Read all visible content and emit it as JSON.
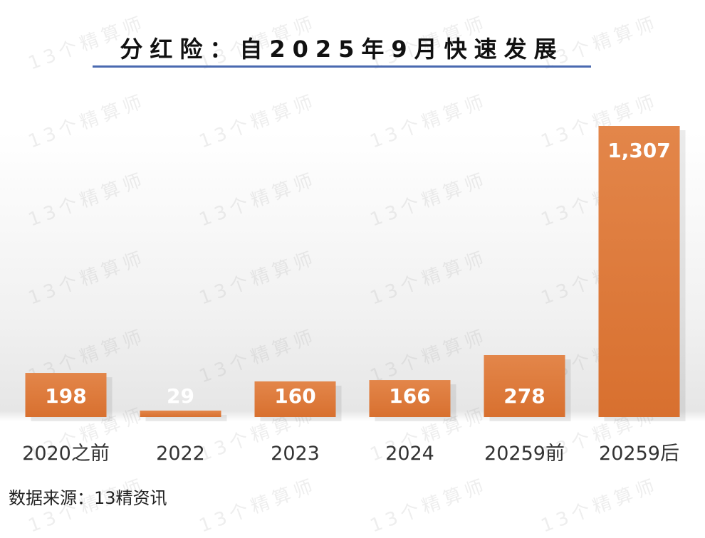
{
  "chart_data": {
    "type": "bar",
    "title": "分红险：自2025年9月快速发展",
    "categories": [
      "2020之前",
      "2022",
      "2023",
      "2024",
      "20259前",
      "20259后"
    ],
    "values": [
      198,
      29,
      160,
      166,
      278,
      1307
    ],
    "data_labels": [
      "198",
      "29",
      "160",
      "166",
      "278",
      "1,307"
    ],
    "bar_color": "#e07a3a",
    "label_color": "#ffffff",
    "grid": false,
    "legend": false
  },
  "source": "数据来源：13精资讯",
  "watermark": "13个精算师"
}
